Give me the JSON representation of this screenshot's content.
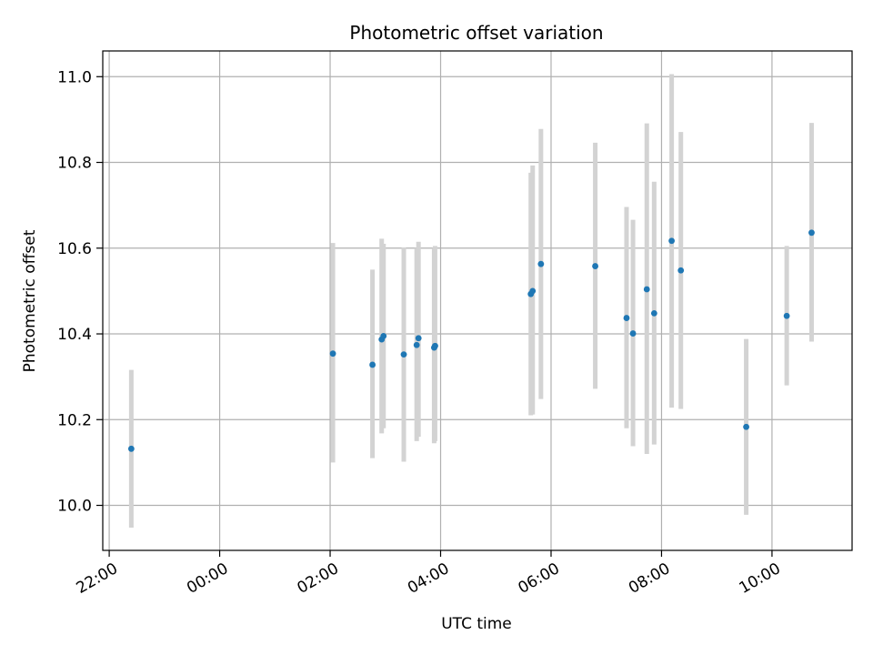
{
  "chart_data": {
    "type": "scatter",
    "title": "Photometric offset variation",
    "xlabel": "UTC time",
    "ylabel": "Photometric offset",
    "x_axis": {
      "unit": "UTC time",
      "range": [
        "21:53",
        "11:27"
      ],
      "ticks": [
        "22:00",
        "00:00",
        "02:00",
        "04:00",
        "06:00",
        "08:00",
        "10:00"
      ]
    },
    "y_axis": {
      "range": [
        9.895,
        11.06
      ],
      "ticks": [
        "10.0",
        "10.2",
        "10.4",
        "10.6",
        "10.8",
        "11.0"
      ]
    },
    "grid": true,
    "legend": "none",
    "colors": {
      "marker": "#1f77b4",
      "errorbar": "#d3d3d3",
      "grid": "#b0b0b0"
    },
    "points": [
      {
        "x": "22:24",
        "y": 10.132,
        "y_low": 9.948,
        "y_high": 10.316
      },
      {
        "x": "02:03",
        "y": 10.354,
        "y_low": 10.1,
        "y_high": 10.612
      },
      {
        "x": "02:46",
        "y": 10.328,
        "y_low": 10.11,
        "y_high": 10.55
      },
      {
        "x": "02:56",
        "y": 10.387,
        "y_low": 10.168,
        "y_high": 10.622
      },
      {
        "x": "02:58",
        "y": 10.395,
        "y_low": 10.18,
        "y_high": 10.61
      },
      {
        "x": "03:20",
        "y": 10.352,
        "y_low": 10.102,
        "y_high": 10.602
      },
      {
        "x": "03:34",
        "y": 10.374,
        "y_low": 10.15,
        "y_high": 10.6
      },
      {
        "x": "03:36",
        "y": 10.39,
        "y_low": 10.16,
        "y_high": 10.615
      },
      {
        "x": "03:53",
        "y": 10.368,
        "y_low": 10.145,
        "y_high": 10.6
      },
      {
        "x": "03:54",
        "y": 10.372,
        "y_low": 10.15,
        "y_high": 10.605
      },
      {
        "x": "05:38",
        "y": 10.493,
        "y_low": 10.21,
        "y_high": 10.776
      },
      {
        "x": "05:40",
        "y": 10.5,
        "y_low": 10.212,
        "y_high": 10.793
      },
      {
        "x": "05:49",
        "y": 10.563,
        "y_low": 10.248,
        "y_high": 10.878
      },
      {
        "x": "06:48",
        "y": 10.558,
        "y_low": 10.272,
        "y_high": 10.846
      },
      {
        "x": "07:22",
        "y": 10.437,
        "y_low": 10.18,
        "y_high": 10.696
      },
      {
        "x": "07:29",
        "y": 10.401,
        "y_low": 10.138,
        "y_high": 10.666
      },
      {
        "x": "07:44",
        "y": 10.504,
        "y_low": 10.12,
        "y_high": 10.891
      },
      {
        "x": "07:52",
        "y": 10.448,
        "y_low": 10.142,
        "y_high": 10.755
      },
      {
        "x": "08:11",
        "y": 10.617,
        "y_low": 10.228,
        "y_high": 11.006
      },
      {
        "x": "08:21",
        "y": 10.548,
        "y_low": 10.225,
        "y_high": 10.871
      },
      {
        "x": "09:32",
        "y": 10.183,
        "y_low": 9.978,
        "y_high": 10.388
      },
      {
        "x": "10:16",
        "y": 10.442,
        "y_low": 10.28,
        "y_high": 10.605
      },
      {
        "x": "10:43",
        "y": 10.636,
        "y_low": 10.382,
        "y_high": 10.892
      }
    ]
  }
}
